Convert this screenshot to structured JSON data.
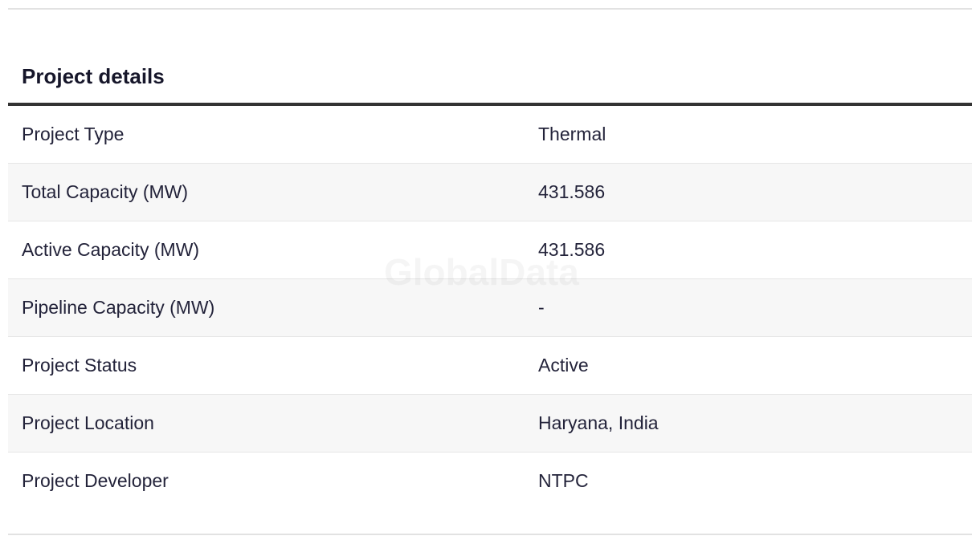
{
  "section": {
    "title": "Project details"
  },
  "rows": [
    {
      "label": "Project Type",
      "value": "Thermal"
    },
    {
      "label": "Total Capacity (MW)",
      "value": "431.586"
    },
    {
      "label": "Active Capacity (MW)",
      "value": "431.586"
    },
    {
      "label": "Pipeline Capacity (MW)",
      "value": "-"
    },
    {
      "label": "Project Status",
      "value": "Active"
    },
    {
      "label": "Project Location",
      "value": "Haryana, India"
    },
    {
      "label": "Project Developer",
      "value": "NTPC"
    }
  ],
  "watermark": "GlobalData"
}
